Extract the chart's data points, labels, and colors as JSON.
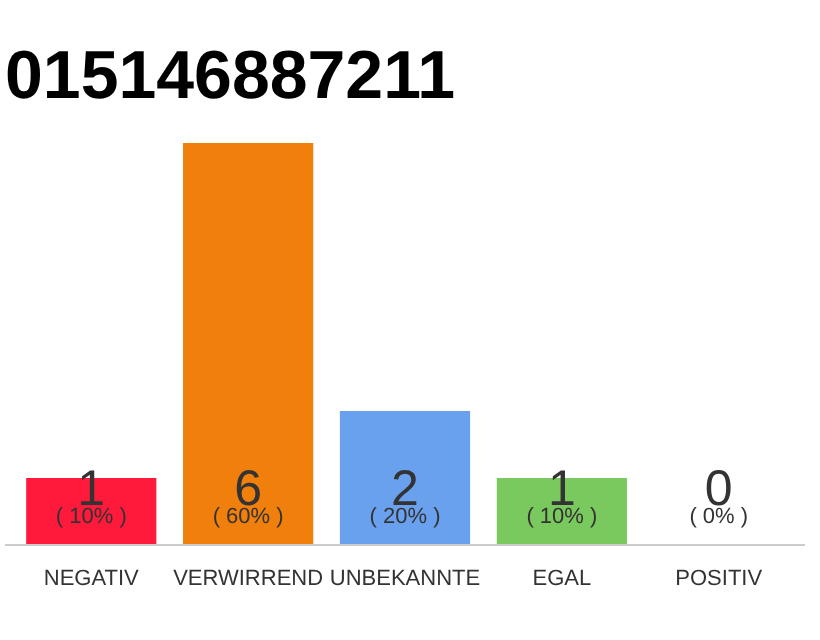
{
  "chart_data": {
    "type": "bar",
    "title": "015146887211",
    "categories": [
      "NEGATIV",
      "VERWIRREND",
      "UNBEKANNTE",
      "EGAL",
      "POSITIV"
    ],
    "values": [
      1,
      6,
      2,
      1,
      0
    ],
    "colors": [
      "#ff1a3c",
      "#f07f0c",
      "#6aa1ef",
      "#7ac95e",
      "#e0e0e0"
    ],
    "data_labels": true,
    "annotations": [
      "( 10% )",
      "( 60% )",
      "( 20% )",
      "( 10% )",
      "( 0% )"
    ],
    "grid": false
  }
}
